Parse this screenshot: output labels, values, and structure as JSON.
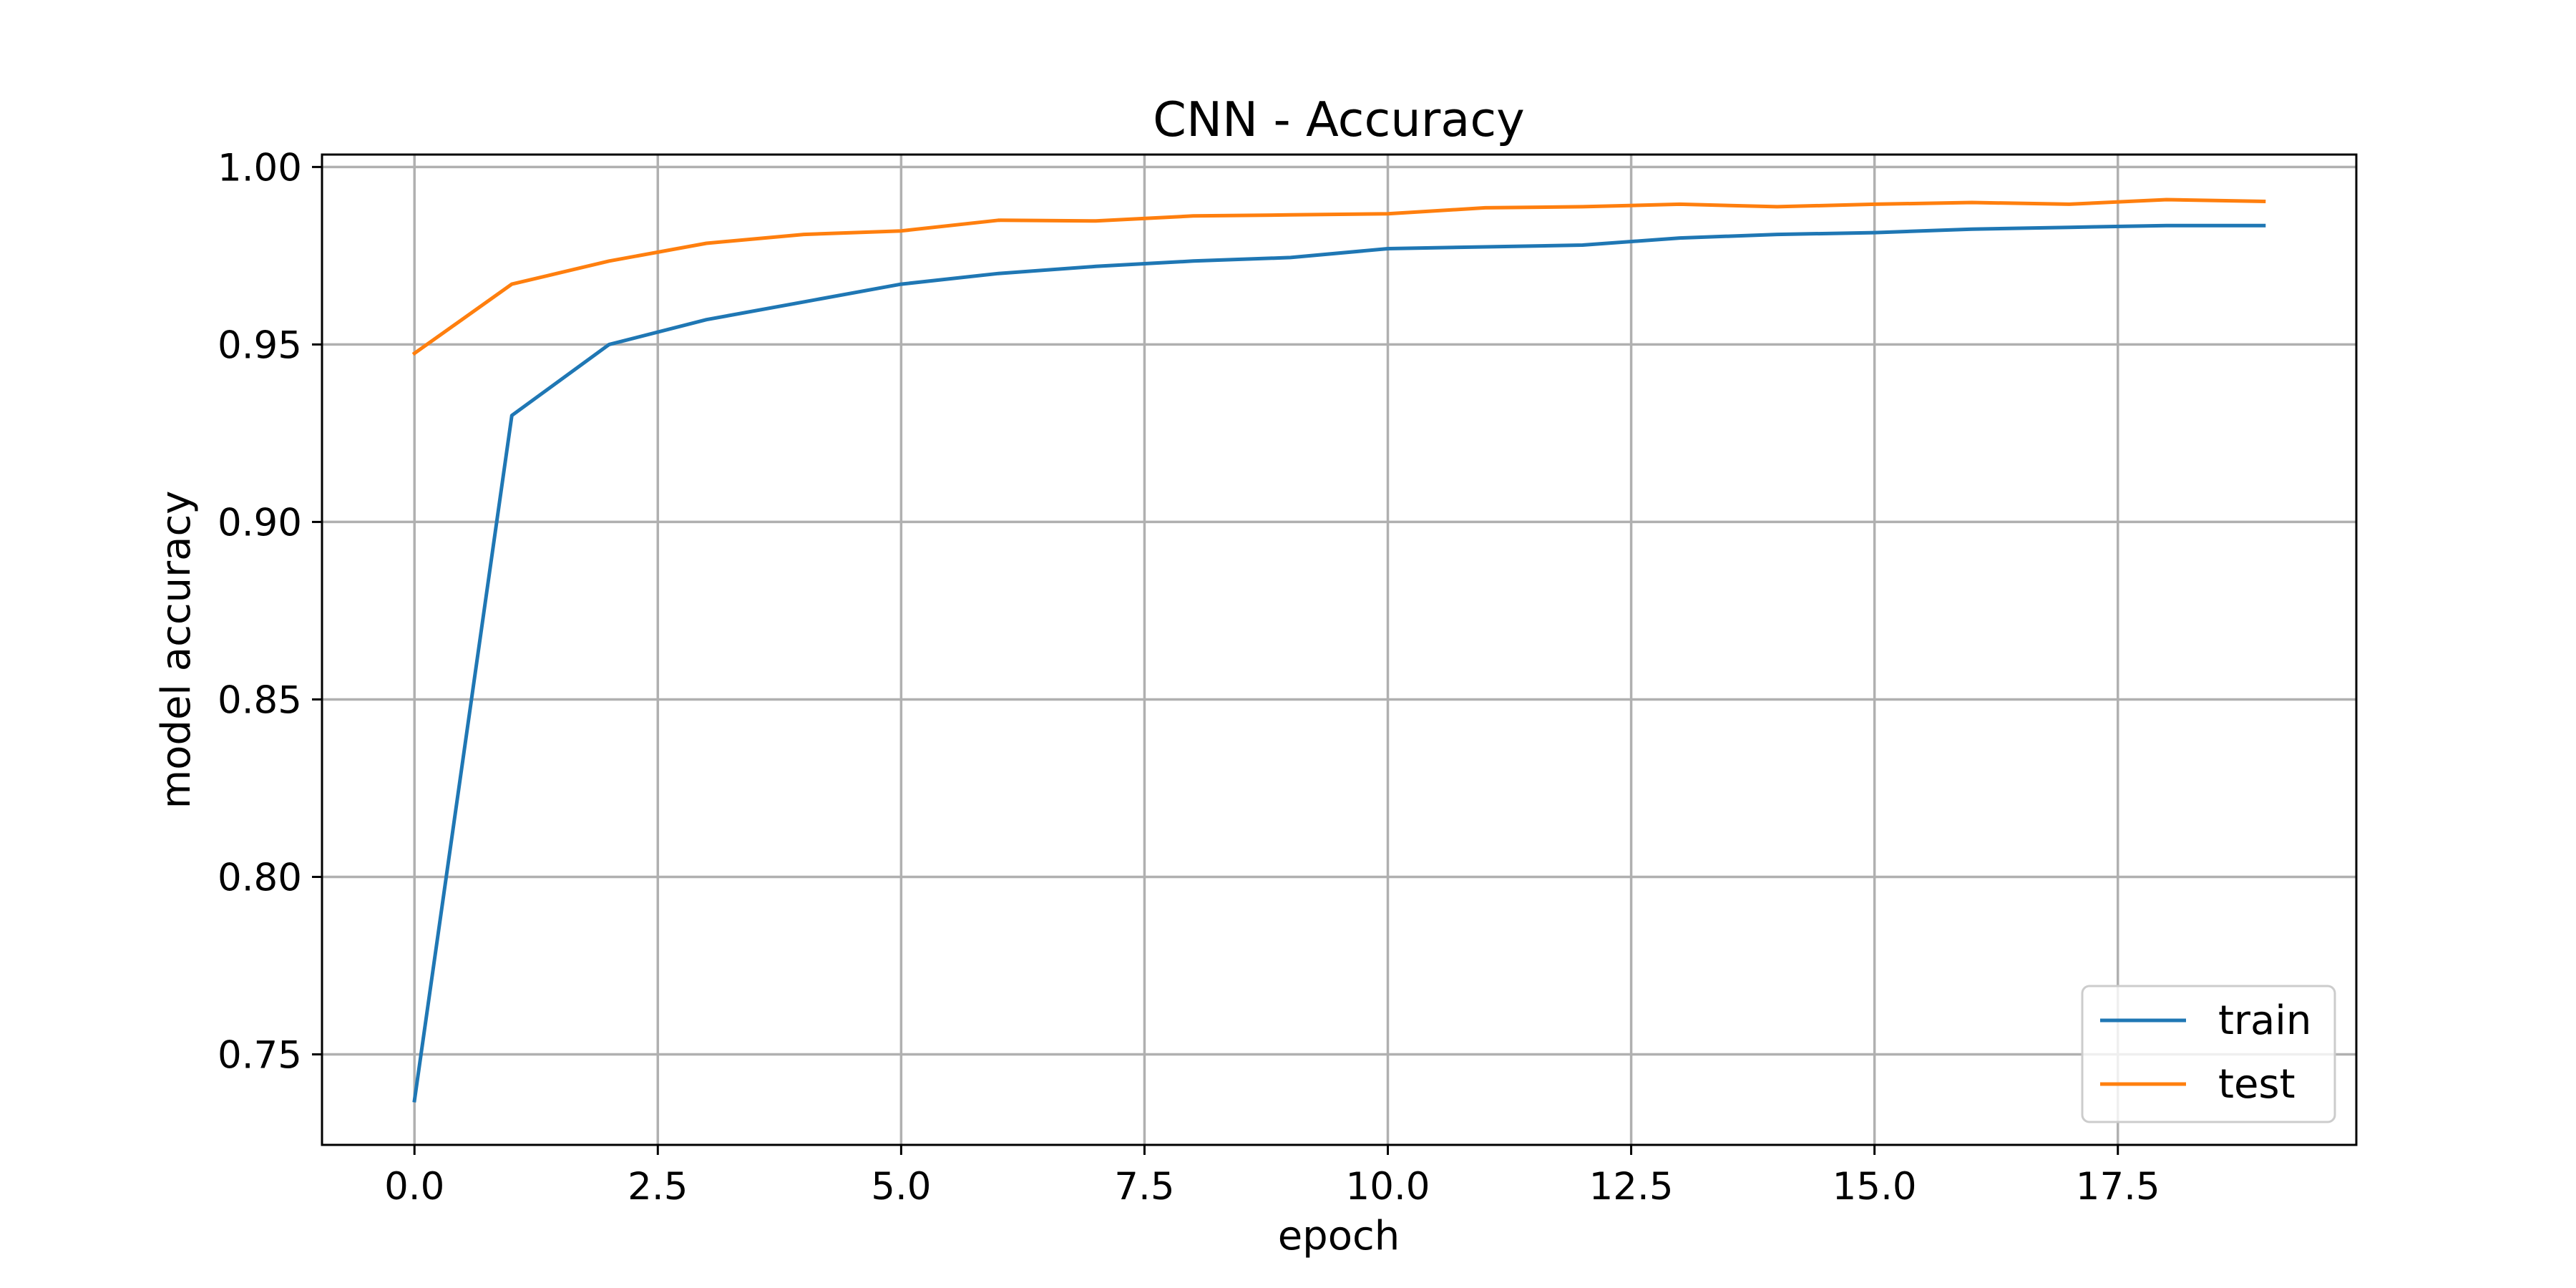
{
  "chart_data": {
    "type": "line",
    "title": "CNN - Accuracy",
    "xlabel": "epoch",
    "ylabel": "model accuracy",
    "xlim": [
      -0.95,
      19.95
    ],
    "ylim": [
      0.7245,
      1.0035
    ],
    "xticks": [
      0.0,
      2.5,
      5.0,
      7.5,
      10.0,
      12.5,
      15.0,
      17.5
    ],
    "xtick_labels": [
      "0.0",
      "2.5",
      "5.0",
      "7.5",
      "10.0",
      "12.5",
      "15.0",
      "17.5"
    ],
    "yticks": [
      0.75,
      0.8,
      0.85,
      0.9,
      0.95,
      1.0
    ],
    "ytick_labels": [
      "0.75",
      "0.80",
      "0.85",
      "0.90",
      "0.95",
      "1.00"
    ],
    "grid": true,
    "legend_position": "bottom-right",
    "x": [
      0,
      1,
      2,
      3,
      4,
      5,
      6,
      7,
      8,
      9,
      10,
      11,
      12,
      13,
      14,
      15,
      16,
      17,
      18,
      19
    ],
    "series": [
      {
        "name": "train",
        "color": "#1f77b4",
        "values": [
          0.737,
          0.93,
          0.95,
          0.957,
          0.962,
          0.967,
          0.97,
          0.972,
          0.9735,
          0.9745,
          0.977,
          0.9775,
          0.978,
          0.98,
          0.981,
          0.9815,
          0.9825,
          0.983,
          0.9835,
          0.9835
        ]
      },
      {
        "name": "test",
        "color": "#ff7f0e",
        "values": [
          0.9475,
          0.967,
          0.9735,
          0.9785,
          0.981,
          0.982,
          0.985,
          0.9848,
          0.9862,
          0.9865,
          0.9868,
          0.9885,
          0.9888,
          0.9895,
          0.9888,
          0.9895,
          0.99,
          0.9895,
          0.9908,
          0.9903
        ]
      }
    ]
  }
}
